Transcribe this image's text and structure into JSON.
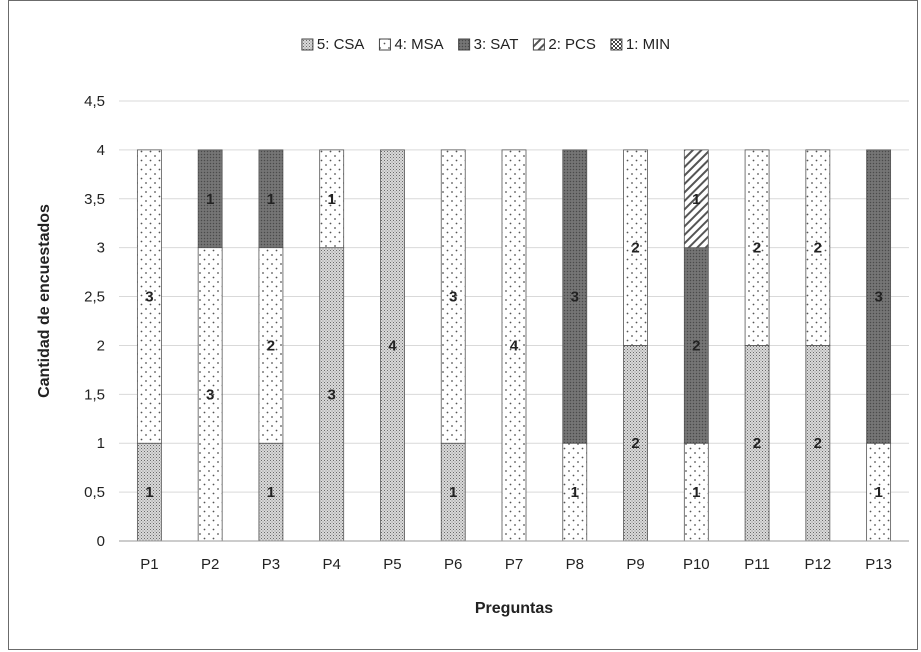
{
  "chart_data": {
    "type": "bar",
    "stacked": true,
    "xlabel": "Preguntas",
    "ylabel": "Cantidad de encuestados",
    "ylim": [
      0,
      4.5
    ],
    "yticks": [
      "0",
      "0,5",
      "1",
      "1,5",
      "2",
      "2,5",
      "3",
      "3,5",
      "4",
      "4,5"
    ],
    "grid": true,
    "legend_position": "top",
    "categories": [
      "P1",
      "P2",
      "P3",
      "P4",
      "P5",
      "P6",
      "P7",
      "P8",
      "P9",
      "P10",
      "P11",
      "P12",
      "P13"
    ],
    "legend_order": [
      "5: CSA",
      "4: MSA",
      "3: SAT",
      "2: PCS",
      "1: MIN"
    ],
    "series": [
      {
        "name": "5: CSA",
        "pattern": "fine-dots",
        "values": [
          1,
          0,
          1,
          3,
          4,
          1,
          0,
          0,
          2,
          0,
          2,
          2,
          0
        ]
      },
      {
        "name": "4: MSA",
        "pattern": "sparse-dots",
        "values": [
          3,
          3,
          2,
          1,
          0,
          3,
          4,
          1,
          2,
          1,
          2,
          2,
          1
        ]
      },
      {
        "name": "3: SAT",
        "pattern": "dark",
        "values": [
          0,
          1,
          1,
          0,
          0,
          0,
          0,
          3,
          0,
          2,
          0,
          0,
          3
        ]
      },
      {
        "name": "2: PCS",
        "pattern": "diagonal",
        "values": [
          0,
          0,
          0,
          0,
          0,
          0,
          0,
          0,
          0,
          1,
          0,
          0,
          0
        ]
      },
      {
        "name": "1: MIN",
        "pattern": "checker",
        "values": [
          0,
          0,
          0,
          0,
          0,
          0,
          0,
          0,
          0,
          0,
          0,
          0,
          0
        ]
      }
    ],
    "stack_order": [
      "5: CSA",
      "4: MSA",
      "3: SAT",
      "2: PCS",
      "1: MIN"
    ]
  }
}
